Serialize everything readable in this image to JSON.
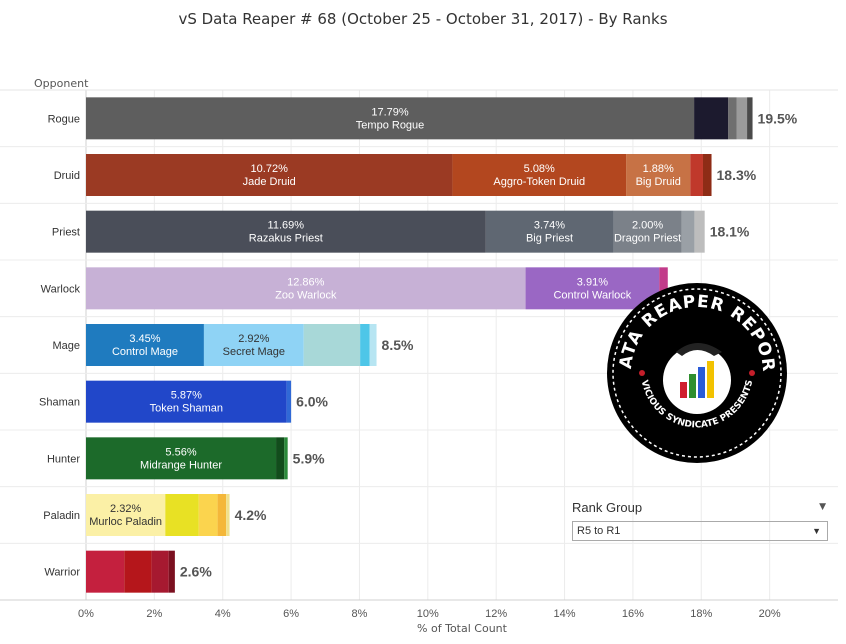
{
  "title": "vS Data Reaper #  68 (October 25 - October 31, 2017) - By Ranks",
  "y_axis_title": "Opponent",
  "colors": {
    "rogue": [
      "#5e5e5e",
      "#1c1a2e",
      "#6f6f6f",
      "#9b9b9b",
      "#4a4a4a"
    ],
    "druid": [
      "#9b3a23",
      "#b3471f",
      "#c77245",
      "#c0392b",
      "#8e2c16"
    ],
    "priest": [
      "#4a4e59",
      "#5f6772",
      "#7b8189",
      "#9aa0a6",
      "#bdbdbd"
    ],
    "warlock": [
      "#c7b1d6",
      "#9a67c4",
      "#c23b8a"
    ],
    "mage": [
      "#1f7bbf",
      "#8fd3f5",
      "#a8d8d8",
      "#4ec6e8",
      "#b7e5f2"
    ],
    "shaman": [
      "#2147c9",
      "#3069d6"
    ],
    "hunter": [
      "#1c6a2a",
      "#124d1c",
      "#2a8a3a"
    ],
    "paladin": [
      "#fbf0a6",
      "#e8e124",
      "#fbd44e",
      "#f4b73a",
      "#f0e08c"
    ],
    "warrior": [
      "#c4203e",
      "#b5161b",
      "#a61930",
      "#7b1020"
    ]
  },
  "chart_data": {
    "type": "bar",
    "orientation": "horizontal",
    "stacked": true,
    "title": "vS Data Reaper #  68 (October 25 - October 31, 2017) - By Ranks",
    "xlabel": "% of Total Count",
    "ylabel": "Opponent",
    "xlim": [
      0,
      22
    ],
    "x_ticks": [
      "0%",
      "2%",
      "4%",
      "6%",
      "8%",
      "10%",
      "12%",
      "14%",
      "16%",
      "18%",
      "20%"
    ],
    "grid": true,
    "categories": [
      "Rogue",
      "Druid",
      "Priest",
      "Warlock",
      "Mage",
      "Shaman",
      "Hunter",
      "Paladin",
      "Warrior"
    ],
    "rows": [
      {
        "class": "Rogue",
        "color_key": "rogue",
        "total_label": "19.5%",
        "segments": [
          {
            "value": 17.79,
            "pct": "17.79%",
            "name": "Tempo Rogue"
          },
          {
            "value": 1.0
          },
          {
            "value": 0.25
          },
          {
            "value": 0.3
          },
          {
            "value": 0.16
          }
        ]
      },
      {
        "class": "Druid",
        "color_key": "druid",
        "total_label": "18.3%",
        "segments": [
          {
            "value": 10.72,
            "pct": "10.72%",
            "name": "Jade Druid"
          },
          {
            "value": 5.08,
            "pct": "5.08%",
            "name": "Aggro-Token Druid"
          },
          {
            "value": 1.88,
            "pct": "1.88%",
            "name": "Big Druid"
          },
          {
            "value": 0.37
          },
          {
            "value": 0.25
          }
        ]
      },
      {
        "class": "Priest",
        "color_key": "priest",
        "total_label": "18.1%",
        "segments": [
          {
            "value": 11.69,
            "pct": "11.69%",
            "name": "Razakus Priest"
          },
          {
            "value": 3.74,
            "pct": "3.74%",
            "name": "Big Priest"
          },
          {
            "value": 2.0,
            "pct": "2.00%",
            "name": "Dragon Priest"
          },
          {
            "value": 0.37
          },
          {
            "value": 0.3
          }
        ]
      },
      {
        "class": "Warlock",
        "color_key": "warlock",
        "total_label": "",
        "segments": [
          {
            "value": 12.86,
            "pct": "12.86%",
            "name": "Zoo Warlock"
          },
          {
            "value": 3.91,
            "pct": "3.91%",
            "name": "Control Warlock"
          },
          {
            "value": 0.25
          }
        ]
      },
      {
        "class": "Mage",
        "color_key": "mage",
        "total_label": "8.5%",
        "segments": [
          {
            "value": 3.45,
            "pct": "3.45%",
            "name": "Control Mage"
          },
          {
            "value": 2.92,
            "pct": "2.92%",
            "name": "Secret Mage"
          },
          {
            "value": 1.65
          },
          {
            "value": 0.28
          },
          {
            "value": 0.2
          }
        ]
      },
      {
        "class": "Shaman",
        "color_key": "shaman",
        "total_label": "6.0%",
        "segments": [
          {
            "value": 5.87,
            "pct": "5.87%",
            "name": "Token Shaman"
          },
          {
            "value": 0.13
          }
        ]
      },
      {
        "class": "Hunter",
        "color_key": "hunter",
        "total_label": "5.9%",
        "segments": [
          {
            "value": 5.56,
            "pct": "5.56%",
            "name": "Midrange Hunter"
          },
          {
            "value": 0.24
          },
          {
            "value": 0.1
          }
        ]
      },
      {
        "class": "Paladin",
        "color_key": "paladin",
        "total_label": "4.2%",
        "segments": [
          {
            "value": 2.32,
            "pct": "2.32%",
            "name": "Murloc Paladin"
          },
          {
            "value": 0.98
          },
          {
            "value": 0.55
          },
          {
            "value": 0.25
          },
          {
            "value": 0.1
          }
        ]
      },
      {
        "class": "Warrior",
        "color_key": "warrior",
        "total_label": "2.6%",
        "segments": [
          {
            "value": 1.12
          },
          {
            "value": 0.8
          },
          {
            "value": 0.5
          },
          {
            "value": 0.18
          }
        ]
      }
    ]
  },
  "rank_filter": {
    "title": "Rank Group",
    "selected": "R5 to R1"
  },
  "logo": {
    "main_text": "DATA REAPER REPORT",
    "sub_text": "VICIOUS SYNDICATE PRESENTS"
  }
}
